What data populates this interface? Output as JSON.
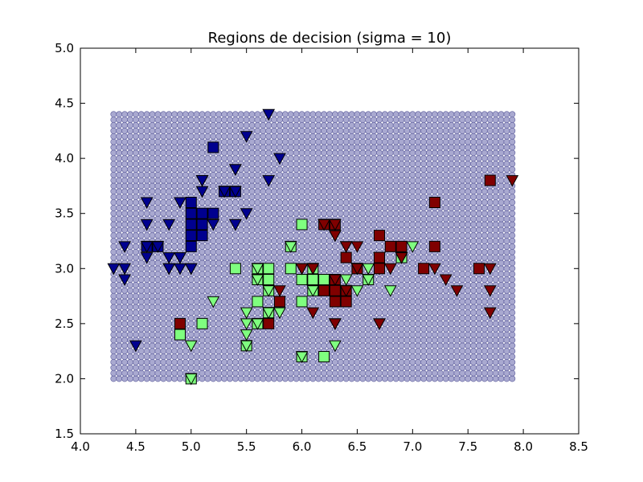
{
  "chart_data": {
    "type": "scatter",
    "title": "Regions de decision (sigma = 10)",
    "xlim": [
      4.0,
      8.5
    ],
    "ylim": [
      1.5,
      5.0
    ],
    "x_ticks": [
      "4.0",
      "4.5",
      "5.0",
      "5.5",
      "6.0",
      "6.5",
      "7.0",
      "7.5",
      "8.0",
      "8.5"
    ],
    "y_ticks": [
      "1.5",
      "2.0",
      "2.5",
      "3.0",
      "3.5",
      "4.0",
      "4.5",
      "5.0"
    ],
    "grid": false,
    "background_grid": {
      "x_range": [
        4.3,
        7.9
      ],
      "y_range": [
        2.0,
        4.4
      ],
      "step": 0.05,
      "color": "#a9a9d0",
      "edge_color": "#5a5a9a"
    },
    "colors": {
      "class_0": "#00008f",
      "class_1": "#7fff7f",
      "class_2": "#800000"
    },
    "series": [
      {
        "class": 0,
        "marker": "square",
        "points": [
          [
            5.1,
            3.5
          ],
          [
            4.7,
            3.2
          ],
          [
            5.0,
            3.6
          ],
          [
            5.0,
            3.4
          ],
          [
            5.4,
            3.7
          ],
          [
            5.2,
            4.1
          ],
          [
            5.3,
            3.7
          ],
          [
            5.0,
            3.3
          ],
          [
            5.1,
            3.3
          ],
          [
            5.2,
            3.5
          ],
          [
            5.1,
            3.4
          ],
          [
            5.0,
            3.2
          ],
          [
            4.6,
            3.2
          ],
          [
            5.0,
            3.5
          ],
          [
            5.1,
            3.4
          ]
        ]
      },
      {
        "class": 0,
        "marker": "triangle_down",
        "points": [
          [
            4.9,
            3.0
          ],
          [
            4.6,
            3.1
          ],
          [
            5.4,
            3.9
          ],
          [
            4.6,
            3.4
          ],
          [
            4.4,
            2.9
          ],
          [
            4.9,
            3.1
          ],
          [
            5.4,
            3.7
          ],
          [
            4.8,
            3.4
          ],
          [
            4.8,
            3.0
          ],
          [
            4.3,
            3.0
          ],
          [
            5.8,
            4.0
          ],
          [
            5.7,
            4.4
          ],
          [
            5.4,
            3.9
          ],
          [
            5.7,
            3.8
          ],
          [
            5.1,
            3.8
          ],
          [
            5.4,
            3.4
          ],
          [
            4.6,
            3.6
          ],
          [
            5.0,
            3.0
          ],
          [
            5.2,
            3.4
          ],
          [
            4.7,
            3.2
          ],
          [
            4.8,
            3.1
          ],
          [
            5.5,
            4.2
          ],
          [
            4.9,
            3.1
          ],
          [
            5.5,
            3.5
          ],
          [
            4.4,
            3.0
          ],
          [
            4.5,
            2.3
          ],
          [
            4.4,
            3.2
          ],
          [
            5.1,
            3.8
          ],
          [
            4.8,
            3.0
          ],
          [
            5.1,
            3.8
          ],
          [
            4.6,
            3.2
          ],
          [
            5.3,
            3.7
          ],
          [
            5.0,
            3.0
          ],
          [
            4.9,
            3.6
          ],
          [
            5.1,
            3.7
          ],
          [
            5.4,
            3.4
          ]
        ]
      },
      {
        "class": 1,
        "marker": "square",
        "points": [
          [
            5.5,
            2.3
          ],
          [
            4.9,
            2.4
          ],
          [
            6.6,
            2.9
          ],
          [
            5.0,
            2.0
          ],
          [
            6.0,
            2.2
          ],
          [
            6.1,
            2.9
          ],
          [
            5.6,
            2.9
          ],
          [
            5.8,
            2.7
          ],
          [
            6.2,
            2.2
          ],
          [
            5.6,
            2.5
          ],
          [
            5.9,
            3.2
          ],
          [
            6.1,
            2.8
          ],
          [
            6.0,
            2.9
          ],
          [
            5.6,
            3.0
          ],
          [
            5.8,
            2.7
          ],
          [
            5.7,
            2.6
          ],
          [
            5.4,
            3.0
          ],
          [
            6.0,
            3.4
          ],
          [
            6.9,
            3.1
          ],
          [
            5.7,
            2.8
          ],
          [
            6.2,
            2.9
          ],
          [
            5.1,
            2.5
          ],
          [
            5.7,
            3.0
          ],
          [
            5.9,
            3.0
          ],
          [
            6.0,
            2.7
          ],
          [
            5.6,
            2.7
          ],
          [
            5.7,
            2.9
          ],
          [
            6.1,
            3.0
          ],
          [
            4.9,
            2.4
          ],
          [
            6.2,
            2.8
          ]
        ]
      },
      {
        "class": 1,
        "marker": "triangle_down",
        "points": [
          [
            6.4,
            3.2
          ],
          [
            6.9,
            3.1
          ],
          [
            6.5,
            2.8
          ],
          [
            5.7,
            2.8
          ],
          [
            6.3,
            3.3
          ],
          [
            5.2,
            2.7
          ],
          [
            5.0,
            2.3
          ],
          [
            6.7,
            3.1
          ],
          [
            5.8,
            2.7
          ],
          [
            6.4,
            2.9
          ],
          [
            6.6,
            3.0
          ],
          [
            6.8,
            2.8
          ],
          [
            6.7,
            3.0
          ],
          [
            5.5,
            2.4
          ],
          [
            5.5,
            2.6
          ],
          [
            5.8,
            2.6
          ],
          [
            5.0,
            2.0
          ],
          [
            5.6,
            2.5
          ],
          [
            5.5,
            2.5
          ],
          [
            6.0,
            2.2
          ],
          [
            6.3,
            2.3
          ],
          [
            5.6,
            3.0
          ],
          [
            6.6,
            2.9
          ],
          [
            7.0,
            3.2
          ],
          [
            5.7,
            2.6
          ],
          [
            6.1,
            3.0
          ],
          [
            6.3,
            2.5
          ],
          [
            6.7,
            3.0
          ],
          [
            5.5,
            2.3
          ],
          [
            6.0,
            3.0
          ],
          [
            6.1,
            2.8
          ],
          [
            6.5,
            3.0
          ],
          [
            5.6,
            2.9
          ],
          [
            6.4,
            2.8
          ],
          [
            5.9,
            3.2
          ]
        ]
      },
      {
        "class": 2,
        "marker": "square",
        "points": [
          [
            6.3,
            3.4
          ],
          [
            5.8,
            2.7
          ],
          [
            7.1,
            3.0
          ],
          [
            6.3,
            2.9
          ],
          [
            6.5,
            3.0
          ],
          [
            7.6,
            3.0
          ],
          [
            4.9,
            2.5
          ],
          [
            6.7,
            3.3
          ],
          [
            6.2,
            3.4
          ],
          [
            7.2,
            3.6
          ],
          [
            6.4,
            2.7
          ],
          [
            6.8,
            3.2
          ],
          [
            5.7,
            2.5
          ],
          [
            6.4,
            3.1
          ],
          [
            6.5,
            3.0
          ],
          [
            7.7,
            3.8
          ],
          [
            6.2,
            2.8
          ],
          [
            6.3,
            2.7
          ],
          [
            6.7,
            3.0
          ],
          [
            7.2,
            3.2
          ],
          [
            6.9,
            3.2
          ],
          [
            6.7,
            3.1
          ],
          [
            6.4,
            2.8
          ],
          [
            6.3,
            2.8
          ]
        ]
      },
      {
        "class": 2,
        "marker": "triangle_down",
        "points": [
          [
            6.3,
            3.3
          ],
          [
            6.4,
            3.2
          ],
          [
            6.1,
            3.0
          ],
          [
            7.3,
            2.9
          ],
          [
            7.9,
            3.8
          ],
          [
            7.7,
            2.6
          ],
          [
            6.7,
            2.5
          ],
          [
            6.9,
            3.1
          ],
          [
            7.7,
            2.8
          ],
          [
            7.2,
            3.0
          ],
          [
            6.3,
            2.5
          ],
          [
            6.4,
            3.2
          ],
          [
            6.8,
            3.0
          ],
          [
            7.7,
            3.0
          ],
          [
            7.4,
            2.8
          ],
          [
            6.0,
            3.0
          ],
          [
            5.8,
            2.8
          ],
          [
            6.5,
            3.2
          ],
          [
            6.4,
            2.8
          ],
          [
            6.1,
            2.6
          ],
          [
            6.3,
            3.4
          ],
          [
            6.3,
            2.9
          ],
          [
            6.9,
            3.1
          ],
          [
            6.0,
            3.0
          ],
          [
            6.7,
            2.5
          ],
          [
            6.3,
            2.5
          ],
          [
            6.5,
            3.0
          ],
          [
            6.2,
            3.4
          ]
        ]
      }
    ]
  }
}
